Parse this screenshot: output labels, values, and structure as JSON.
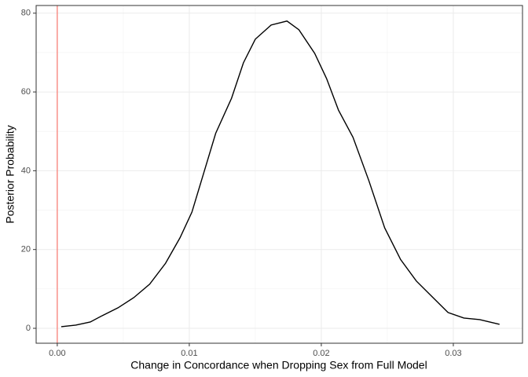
{
  "chart_data": {
    "type": "line",
    "x_label": "Change in Concordance when Dropping Sex from Full Model",
    "y_label": "Posterior Probability",
    "x": [
      0.0003,
      0.0014,
      0.0025,
      0.0034,
      0.0046,
      0.0058,
      0.007,
      0.0082,
      0.0093,
      0.0102,
      0.0111,
      0.012,
      0.0132,
      0.0141,
      0.015,
      0.0162,
      0.0174,
      0.0183,
      0.0195,
      0.0204,
      0.0213,
      0.0224,
      0.0236,
      0.0248,
      0.026,
      0.0272,
      0.0284,
      0.0296,
      0.0308,
      0.032,
      0.0335
    ],
    "series": [
      {
        "color": "#000000",
        "values": [
          0.4,
          0.8,
          1.6,
          3.2,
          5.2,
          7.8,
          11.2,
          16.5,
          23,
          29.5,
          39.5,
          49.5,
          58.4,
          67.4,
          73.4,
          77,
          78,
          75.8,
          69.8,
          63.4,
          55.4,
          48.5,
          37.5,
          25.5,
          17.5,
          12,
          8,
          4,
          2.6,
          2.2,
          1.0
        ]
      }
    ],
    "vline": {
      "value": 0,
      "color": "#f8766d"
    },
    "xlim": [
      -0.0016,
      0.03524
    ],
    "ylim": [
      -3.79,
      81.95
    ],
    "xticks": [
      {
        "value": 0,
        "label": "0.00"
      },
      0.01,
      0.02,
      0.03
    ],
    "yticks": [
      0,
      20,
      40,
      60,
      80
    ],
    "grid": true
  }
}
